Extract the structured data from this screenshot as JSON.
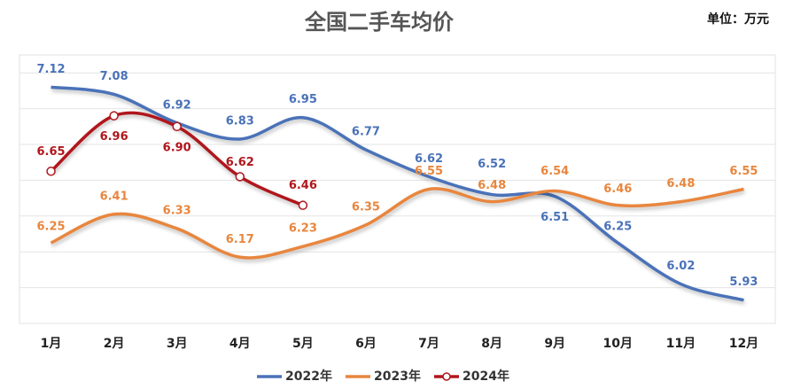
{
  "chart_data": {
    "type": "line",
    "title": "全国二手车均价",
    "unit": "单位：万元",
    "categories": [
      "1月",
      "2月",
      "3月",
      "4月",
      "5月",
      "6月",
      "7月",
      "8月",
      "9月",
      "10月",
      "11月",
      "12月"
    ],
    "series": [
      {
        "name": "2022年",
        "color": "#4a72b8",
        "values": [
          7.12,
          7.08,
          6.92,
          6.83,
          6.95,
          6.77,
          6.62,
          6.52,
          6.51,
          6.25,
          6.02,
          5.93
        ],
        "value_labels": [
          "7.12",
          "7.08",
          "6.92",
          "6.83",
          "6.95",
          "6.77",
          "6.62",
          "6.52",
          "6.51",
          "6.25",
          "6.02",
          "5.93"
        ]
      },
      {
        "name": "2023年",
        "color": "#e8863e",
        "values": [
          6.25,
          6.41,
          6.33,
          6.17,
          6.23,
          6.35,
          6.55,
          6.48,
          6.54,
          6.46,
          6.48,
          6.55
        ],
        "value_labels": [
          "6.25",
          "6.41",
          "6.33",
          "6.17",
          "6.23",
          "6.35",
          "6.55",
          "6.48",
          "6.54",
          "6.46",
          "6.48",
          "6.55"
        ]
      },
      {
        "name": "2024年",
        "color": "#b0161c",
        "markers": true,
        "values": [
          6.65,
          6.96,
          6.9,
          6.62,
          6.46,
          null,
          null,
          null,
          null,
          null,
          null,
          null
        ],
        "value_labels": [
          "6.65",
          "6.96",
          "6.90",
          "6.62",
          "6.46",
          null,
          null,
          null,
          null,
          null,
          null,
          null
        ]
      }
    ],
    "ylim": [
      5.8,
      7.3
    ],
    "yticks": [
      5.8,
      6.0,
      6.2,
      6.4,
      6.6,
      6.8,
      7.0,
      7.2
    ],
    "grid": true,
    "legend": "bottom"
  }
}
